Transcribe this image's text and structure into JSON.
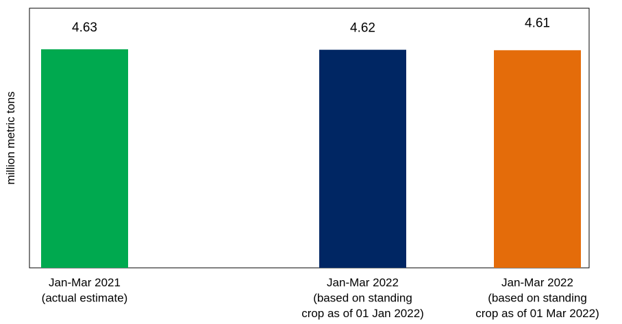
{
  "chart_data": {
    "type": "bar",
    "title": "",
    "xlabel": "",
    "ylabel": "million metric tons",
    "ylim": [
      0,
      5.5
    ],
    "grid": false,
    "categories": [
      [
        "Jan-Mar 2021",
        "(actual estimate)"
      ],
      [
        "Jan-Mar 2022",
        "(based on standing",
        "crop as of 01 Jan 2022)"
      ],
      [
        "Jan-Mar 2022",
        "(based on standing",
        "crop as of 01 Mar 2022)"
      ]
    ],
    "values": [
      4.63,
      4.62,
      4.61
    ],
    "value_labels": [
      "4.63",
      "4.62",
      "4.61"
    ],
    "colors": [
      "#00A94F",
      "#002663",
      "#E46C0A"
    ]
  }
}
